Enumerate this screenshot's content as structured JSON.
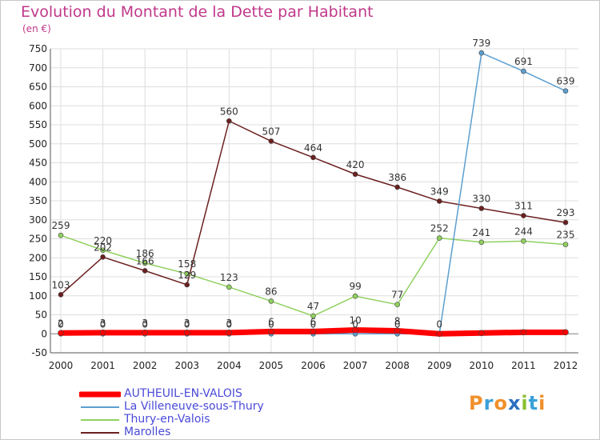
{
  "title": "Evolution du Montant de la Dette par Habitant",
  "unit": "(en €)",
  "logo": {
    "letters": [
      "P",
      "r",
      "o",
      "x",
      "i",
      "t",
      "i"
    ],
    "colors": [
      "#f0902a",
      "#3aa0d8",
      "#f0902a",
      "#2a70c0",
      "#8ac030",
      "#3aa0d8",
      "#f0902a"
    ]
  },
  "chart_data": {
    "type": "line",
    "title": "Evolution du Montant de la Dette par Habitant",
    "ylabel": "(en €)",
    "x": [
      2000,
      2001,
      2002,
      2003,
      2004,
      2005,
      2006,
      2007,
      2008,
      2009,
      2010,
      2011,
      2012
    ],
    "ylim": [
      -50,
      750
    ],
    "yticks": [
      -50,
      0,
      50,
      100,
      150,
      200,
      250,
      300,
      350,
      400,
      450,
      500,
      550,
      600,
      650,
      700,
      750
    ],
    "grid": true,
    "legend_position": "bottom-left",
    "series": [
      {
        "name": "AUTHEUIL-EN-VALOIS",
        "color": "#ff0000",
        "values": [
          2,
          3,
          3,
          3,
          3,
          6,
          6,
          10,
          8,
          0,
          2,
          4,
          4
        ],
        "labels": [
          "2",
          "3",
          "3",
          "3",
          "3",
          "6",
          "6",
          "10",
          "8",
          "",
          "",
          "",
          ""
        ],
        "bold": true
      },
      {
        "name": "La Villeneuve-sous-Thury",
        "color": "#5c9fd0",
        "values": [
          0,
          0,
          0,
          0,
          0,
          0,
          0,
          0,
          0,
          0,
          739,
          691,
          639
        ],
        "labels": [
          "0",
          "0",
          "0",
          "0",
          "0",
          "0",
          "0",
          "0",
          "0",
          "0",
          "739",
          "691",
          "639"
        ]
      },
      {
        "name": "Thury-en-Valois",
        "color": "#90d060",
        "values": [
          259,
          220,
          186,
          158,
          123,
          86,
          47,
          99,
          77,
          252,
          241,
          244,
          235
        ],
        "labels": [
          "259",
          "220",
          "186",
          "158",
          "123",
          "86",
          "47",
          "99",
          "77",
          "252",
          "241",
          "244",
          "235"
        ]
      },
      {
        "name": "Marolles",
        "color": "#6b1f1f",
        "values": [
          103,
          202,
          166,
          129,
          560,
          507,
          464,
          420,
          386,
          349,
          330,
          311,
          293
        ],
        "labels": [
          "103",
          "202",
          "166",
          "129",
          "560",
          "507",
          "464",
          "420",
          "386",
          "349",
          "330",
          "311",
          "293"
        ]
      }
    ]
  }
}
